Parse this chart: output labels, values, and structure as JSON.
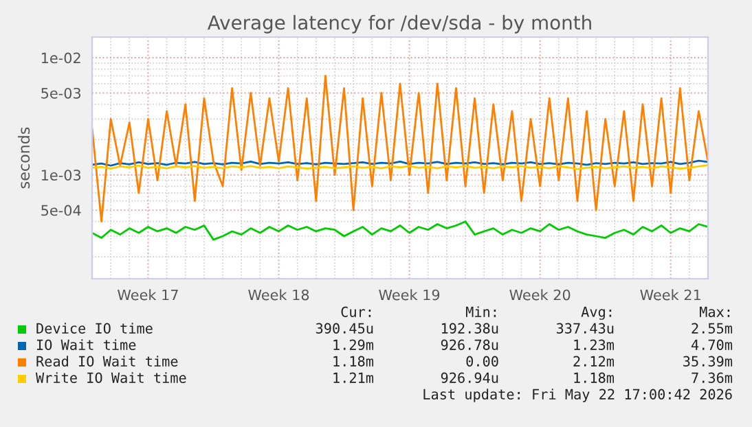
{
  "chart_data": {
    "type": "line",
    "title": "Average latency for /dev/sda - by month",
    "ylabel": "seconds",
    "log": "y",
    "grid": true,
    "legend": "bottom",
    "categories": [
      null,
      null,
      null,
      null,
      null,
      null,
      "Week 17",
      null,
      null,
      null,
      null,
      null,
      null,
      null,
      null,
      null,
      null,
      null,
      null,
      null,
      "Week 18",
      null,
      null,
      null,
      null,
      null,
      null,
      null,
      null,
      null,
      null,
      null,
      null,
      null,
      "Week 19",
      null,
      null,
      null,
      null,
      null,
      null,
      null,
      null,
      null,
      null,
      null,
      null,
      null,
      "Week 20",
      null,
      null,
      null,
      null,
      null,
      null,
      null,
      null,
      null,
      null,
      null,
      null,
      null,
      "Week 21",
      null,
      null,
      null,
      null
    ],
    "ylim": [
      0.00013,
      0.015
    ],
    "yticks": [
      {
        "value": 0.0005,
        "label": "5e-04"
      },
      {
        "value": 0.001,
        "label": "1e-03"
      },
      {
        "value": 0.005,
        "label": "5e-03"
      },
      {
        "value": 0.01,
        "label": "1e-02"
      }
    ],
    "series": [
      {
        "name": "Device IO time",
        "color": "#00cc00",
        "values": [
          0.00032,
          0.00029,
          0.00034,
          0.00031,
          0.00035,
          0.00032,
          0.00036,
          0.00033,
          0.00035,
          0.00032,
          0.00036,
          0.00034,
          0.00037,
          0.00028,
          0.0003,
          0.00033,
          0.00031,
          0.00035,
          0.00032,
          0.00036,
          0.00033,
          0.00037,
          0.00034,
          0.00036,
          0.00033,
          0.00035,
          0.00034,
          0.0003,
          0.00033,
          0.00036,
          0.00031,
          0.00035,
          0.00033,
          0.00037,
          0.00032,
          0.00036,
          0.00034,
          0.00038,
          0.00035,
          0.00037,
          0.0004,
          0.00031,
          0.00033,
          0.00035,
          0.00031,
          0.00034,
          0.00032,
          0.00035,
          0.00033,
          0.00038,
          0.00034,
          0.00036,
          0.00033,
          0.00031,
          0.0003,
          0.00029,
          0.00032,
          0.00034,
          0.00031,
          0.00036,
          0.00033,
          0.00037,
          0.00032,
          0.00035,
          0.00033,
          0.00038,
          0.00036
        ]
      },
      {
        "name": "IO Wait time",
        "color": "#0066b3",
        "values": [
          0.00122,
          0.00125,
          0.0012,
          0.00126,
          0.00123,
          0.00128,
          0.00124,
          0.00126,
          0.00122,
          0.00127,
          0.00125,
          0.00129,
          0.00124,
          0.00126,
          0.00123,
          0.00127,
          0.00125,
          0.0013,
          0.00124,
          0.00127,
          0.00125,
          0.00128,
          0.00124,
          0.00126,
          0.00123,
          0.00127,
          0.00125,
          0.00124,
          0.00126,
          0.00128,
          0.00124,
          0.00127,
          0.00125,
          0.0013,
          0.00124,
          0.00127,
          0.00125,
          0.00129,
          0.00124,
          0.00127,
          0.00125,
          0.00128,
          0.00124,
          0.00126,
          0.00123,
          0.00127,
          0.00125,
          0.00128,
          0.00124,
          0.00126,
          0.00123,
          0.00127,
          0.00125,
          0.00122,
          0.00126,
          0.00124,
          0.00127,
          0.00125,
          0.00128,
          0.00124,
          0.00126,
          0.00125,
          0.00129,
          0.00124,
          0.00127,
          0.00132,
          0.00129
        ]
      },
      {
        "name": "Read IO Wait time",
        "color": "#ff8000",
        "values": [
          0.0025,
          0.0004,
          0.003,
          0.0012,
          0.0028,
          0.0007,
          0.003,
          0.0009,
          0.0035,
          0.0012,
          0.004,
          0.0006,
          0.0045,
          0.0013,
          0.0008,
          0.0055,
          0.0011,
          0.005,
          0.0012,
          0.0045,
          0.0013,
          0.0055,
          0.0009,
          0.0045,
          0.0006,
          0.007,
          0.001,
          0.0055,
          0.0005,
          0.0045,
          0.0008,
          0.005,
          0.0009,
          0.006,
          0.001,
          0.005,
          0.0007,
          0.006,
          0.0009,
          0.0055,
          0.0008,
          0.0045,
          0.0007,
          0.004,
          0.0009,
          0.0035,
          0.0006,
          0.003,
          0.0008,
          0.0045,
          0.0009,
          0.0045,
          0.0006,
          0.0035,
          0.0005,
          0.003,
          0.0008,
          0.0035,
          0.0006,
          0.004,
          0.0008,
          0.0045,
          0.0007,
          0.0055,
          0.0009,
          0.0035,
          0.0013
        ]
      },
      {
        "name": "Write IO Wait time",
        "color": "#ffcc00",
        "values": [
          0.00115,
          0.00117,
          0.00113,
          0.00118,
          0.00116,
          0.0012,
          0.00115,
          0.00117,
          0.00114,
          0.00118,
          0.00116,
          0.00119,
          0.00115,
          0.00117,
          0.00114,
          0.00118,
          0.00116,
          0.00119,
          0.00115,
          0.00117,
          0.00114,
          0.00118,
          0.00116,
          0.00113,
          0.00115,
          0.00117,
          0.00114,
          0.00116,
          0.00118,
          0.00115,
          0.00117,
          0.00114,
          0.00118,
          0.00116,
          0.00119,
          0.00115,
          0.00117,
          0.00114,
          0.00118,
          0.00116,
          0.00119,
          0.00115,
          0.00117,
          0.00114,
          0.00118,
          0.00116,
          0.00119,
          0.00115,
          0.00117,
          0.00114,
          0.00118,
          0.00116,
          0.00112,
          0.00115,
          0.00117,
          0.00114,
          0.00116,
          0.00118,
          0.00115,
          0.00117,
          0.00114,
          0.00118,
          0.00116,
          0.00113,
          0.00115,
          0.00118,
          0.00121
        ]
      }
    ],
    "annotations": [
      "Cur:",
      "Min:",
      "Avg:",
      "Max:",
      "390.45u",
      "192.38u",
      "337.43u",
      "2.55m",
      "1.29m",
      "926.78u",
      "1.23m",
      "4.70m",
      "1.18m",
      "0.00",
      "2.12m",
      "35.39m",
      "1.21m",
      "926.94u",
      "1.18m",
      "7.36m",
      "Last update: Fri May 22 17:00:42 2026"
    ]
  }
}
